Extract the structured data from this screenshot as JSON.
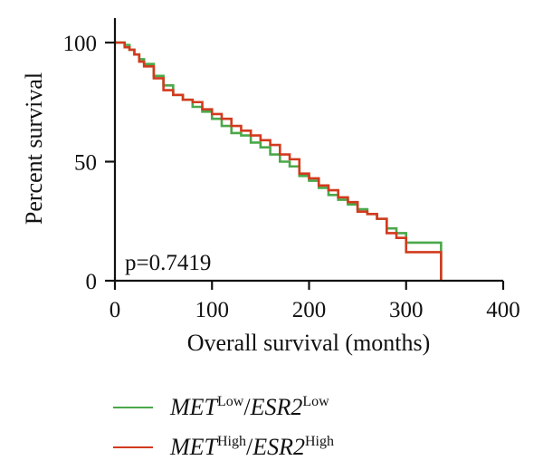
{
  "chart_data": {
    "type": "line",
    "step": true,
    "title": "",
    "xlabel": "Overall survival (months)",
    "ylabel": "Percent survival",
    "xlim": [
      0,
      400
    ],
    "ylim": [
      0,
      100
    ],
    "xticks": [
      "0",
      "100",
      "200",
      "300",
      "400"
    ],
    "yticks": [
      "0",
      "50",
      "100"
    ],
    "annotation": "p=0.7419",
    "grid": false,
    "legend_position": "bottom",
    "series": [
      {
        "name": "MET^Low/ESR2^Low",
        "gene1": "MET",
        "sup1": "Low",
        "sep": "/",
        "gene2": "ESR2",
        "sup2": "Low",
        "color": "#4aa84a",
        "x": [
          0,
          5,
          10,
          15,
          20,
          25,
          30,
          40,
          50,
          60,
          70,
          80,
          90,
          100,
          110,
          120,
          130,
          140,
          150,
          160,
          170,
          180,
          190,
          200,
          210,
          220,
          230,
          240,
          250,
          260,
          270,
          280,
          290,
          300,
          335,
          336
        ],
        "y": [
          100,
          100,
          99,
          97,
          95,
          93,
          91,
          86,
          82,
          78,
          76,
          73,
          71,
          68,
          65,
          62,
          61,
          58,
          56,
          53,
          50,
          48,
          44,
          42,
          39,
          36,
          34,
          32,
          30,
          28,
          26,
          22,
          20,
          16,
          16,
          0
        ]
      },
      {
        "name": "MET^High/ESR2^High",
        "gene1": "MET",
        "sup1": "High",
        "sep": "/",
        "gene2": "ESR2",
        "sup2": "High",
        "color": "#d23a1e",
        "x": [
          0,
          5,
          10,
          15,
          20,
          25,
          30,
          40,
          50,
          60,
          70,
          80,
          90,
          100,
          110,
          120,
          130,
          140,
          150,
          160,
          170,
          180,
          190,
          200,
          210,
          220,
          230,
          240,
          250,
          260,
          270,
          280,
          290,
          300,
          335,
          336
        ],
        "y": [
          100,
          100,
          98,
          97,
          95,
          92,
          90,
          85,
          80,
          78,
          76,
          75,
          72,
          70,
          68,
          65,
          63,
          61,
          59,
          57,
          53,
          51,
          45,
          43,
          40,
          38,
          35,
          33,
          29,
          28,
          26,
          20,
          18,
          12,
          12,
          0
        ]
      }
    ]
  }
}
